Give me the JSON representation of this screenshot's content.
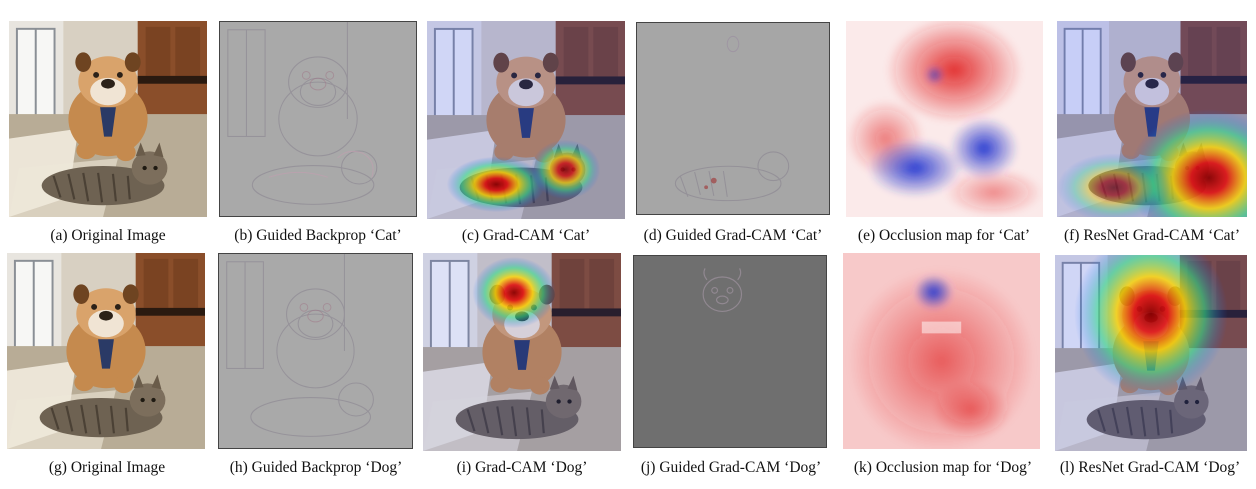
{
  "figure": {
    "rows": [
      {
        "panels": [
          {
            "id": "a",
            "caption": "(a) Original Image",
            "kind": "photo"
          },
          {
            "id": "b",
            "caption": "(b) Guided Backprop ‘Cat’",
            "kind": "guided-backprop"
          },
          {
            "id": "c",
            "caption": "(c) Grad-CAM ‘Cat’",
            "kind": "gradcam-overlay"
          },
          {
            "id": "d",
            "caption": "(d) Guided Grad-CAM ‘Cat’",
            "kind": "guided-gradcam"
          },
          {
            "id": "e",
            "caption": "(e) Occlusion map for ‘Cat’",
            "kind": "occlusion-map"
          },
          {
            "id": "f",
            "caption": "(f) ResNet Grad-CAM ‘Cat’",
            "kind": "gradcam-overlay"
          }
        ]
      },
      {
        "panels": [
          {
            "id": "g",
            "caption": "(g) Original Image",
            "kind": "photo"
          },
          {
            "id": "h",
            "caption": "(h) Guided Backprop ‘Dog’",
            "kind": "guided-backprop"
          },
          {
            "id": "i",
            "caption": "(i) Grad-CAM ‘Dog’",
            "kind": "gradcam-overlay"
          },
          {
            "id": "j",
            "caption": "(j) Guided Grad-CAM ‘Dog’",
            "kind": "guided-gradcam"
          },
          {
            "id": "k",
            "caption": "(k) Occlusion map for ‘Dog’",
            "kind": "occlusion-map"
          },
          {
            "id": "l",
            "caption": "(l) ResNet Grad-CAM ‘Dog’",
            "kind": "gradcam-overlay"
          }
        ]
      }
    ]
  },
  "colors": {
    "heat_hot": "#c00000",
    "heat_mid": "#ffd800",
    "heat_cool": "#1e64ff",
    "occlusion_pos": "#e53a3a",
    "occlusion_neg": "#3a4fd8",
    "neutral_gray": "#a9a9a9"
  }
}
